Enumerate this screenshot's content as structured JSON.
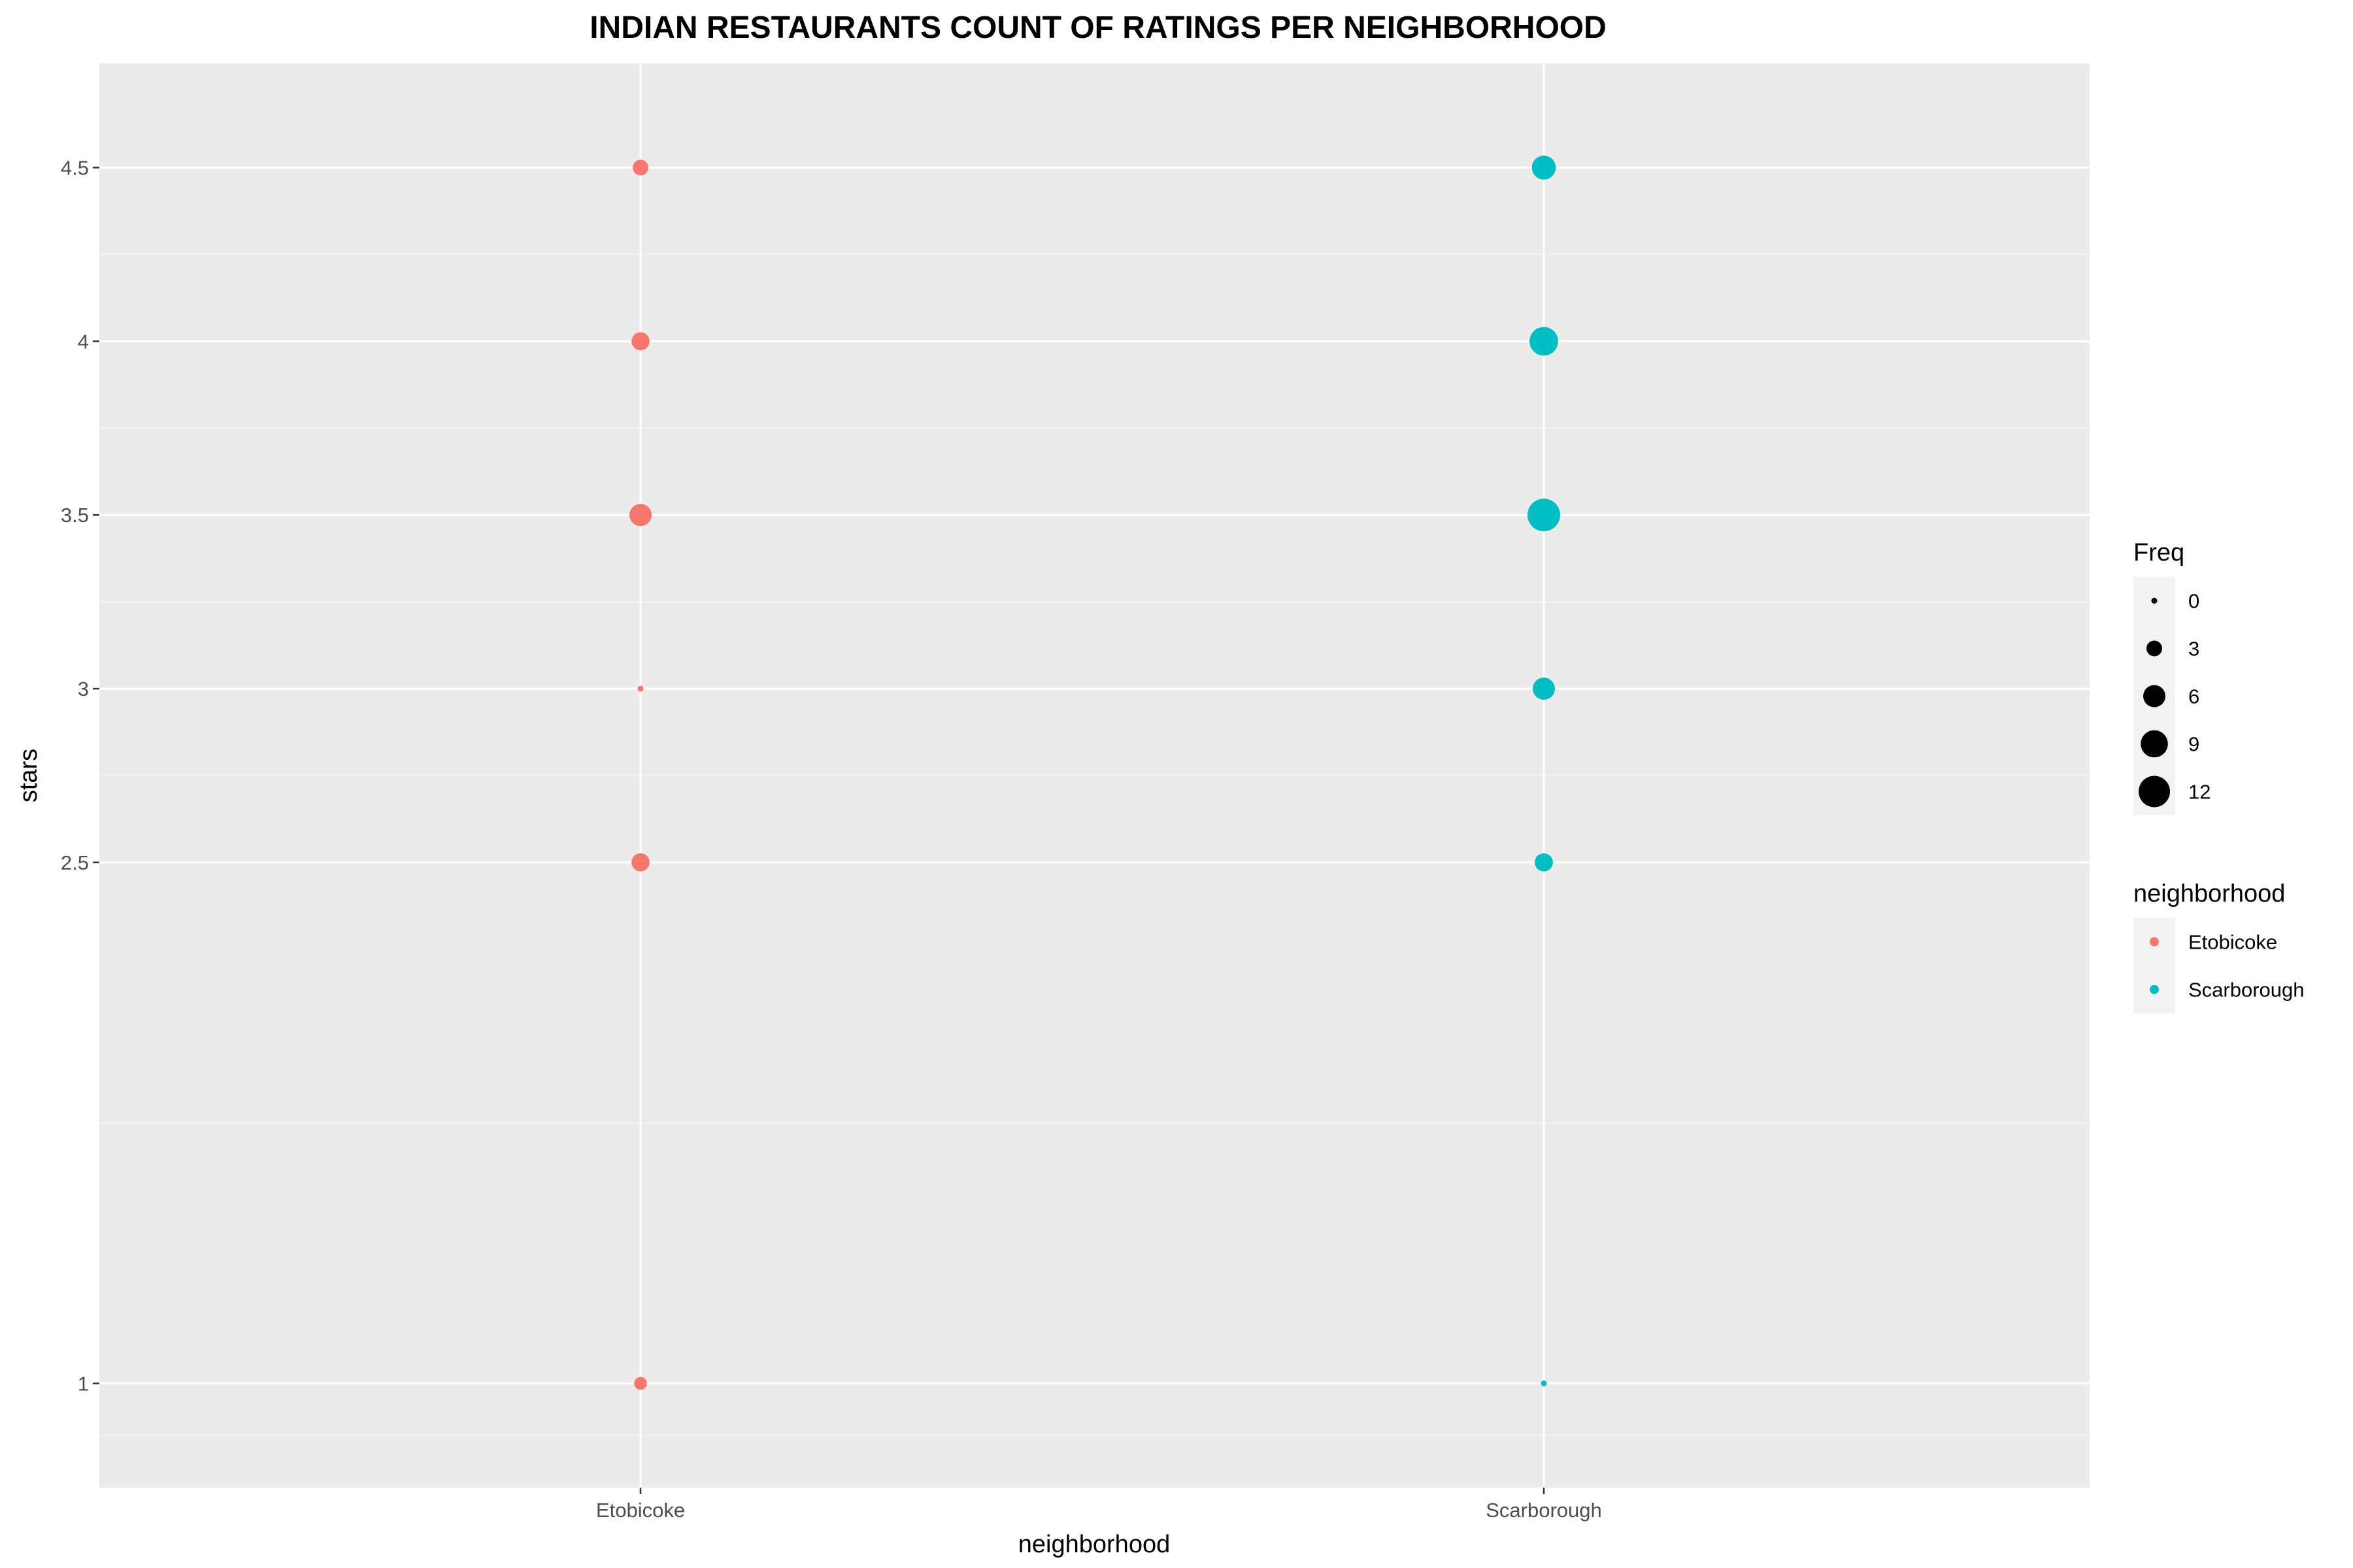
{
  "chart_data": {
    "type": "scatter",
    "title": "INDIAN RESTAURANTS COUNT OF RATINGS PER NEIGHBORHOOD",
    "xlabel": "neighborhood",
    "ylabel": "stars",
    "categories": [
      "Etobicoke",
      "Scarborough"
    ],
    "ylim": [
      0.7,
      4.8
    ],
    "yticks": [
      1,
      2.5,
      3,
      3.5,
      4,
      4.5
    ],
    "ytick_labels": [
      "1",
      "2.5",
      "3",
      "3.5",
      "4",
      "4.5"
    ],
    "grid": true,
    "legend_position": "right",
    "size_legend": {
      "title": "Freq",
      "values": [
        0,
        3,
        6,
        9,
        12
      ],
      "labels": [
        "0",
        "3",
        "6",
        "9",
        "12"
      ],
      "max": 12
    },
    "color_legend": {
      "title": "neighborhood"
    },
    "series": [
      {
        "name": "Etobicoke",
        "color": "#F8766D",
        "points": [
          {
            "x": "Etobicoke",
            "y": 4.5,
            "freq": 3
          },
          {
            "x": "Etobicoke",
            "y": 4,
            "freq": 4
          },
          {
            "x": "Etobicoke",
            "y": 3.5,
            "freq": 6
          },
          {
            "x": "Etobicoke",
            "y": 3,
            "freq": 0
          },
          {
            "x": "Etobicoke",
            "y": 2.5,
            "freq": 4
          },
          {
            "x": "Etobicoke",
            "y": 1,
            "freq": 2
          }
        ]
      },
      {
        "name": "Scarborough",
        "color": "#00BFC4",
        "points": [
          {
            "x": "Scarborough",
            "y": 4.5,
            "freq": 7
          },
          {
            "x": "Scarborough",
            "y": 4,
            "freq": 10
          },
          {
            "x": "Scarborough",
            "y": 3.5,
            "freq": 13
          },
          {
            "x": "Scarborough",
            "y": 3,
            "freq": 6
          },
          {
            "x": "Scarborough",
            "y": 2.5,
            "freq": 4
          },
          {
            "x": "Scarborough",
            "y": 1,
            "freq": 0
          }
        ]
      }
    ]
  }
}
